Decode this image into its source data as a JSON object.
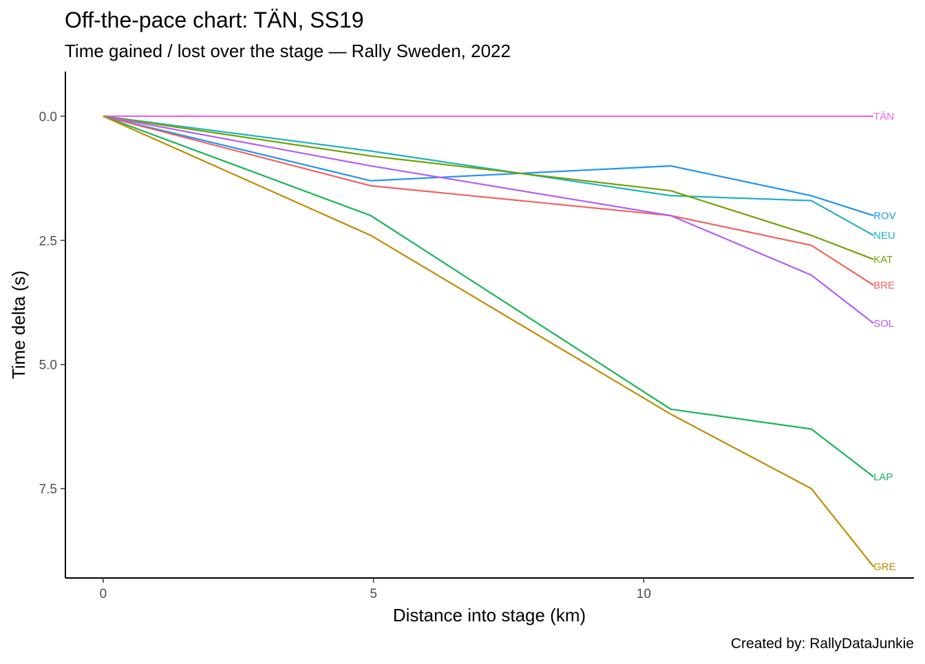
{
  "chart_data": {
    "type": "line",
    "title": "Off-the-pace chart: TÄN, SS19",
    "subtitle": "Time gained / lost over the stage — Rally Sweden, 2022",
    "xlabel": "Distance into stage (km)",
    "ylabel": "Time delta (s)",
    "caption": "Created by: RallyDataJunkie",
    "xlim": [
      -0.7,
      15.0
    ],
    "ylim": [
      9.3,
      -0.9
    ],
    "y_reversed": true,
    "x_ticks": [
      "0",
      "5",
      "10"
    ],
    "x_tick_values": [
      0,
      5,
      10
    ],
    "y_ticks": [
      "0.0",
      "2.5",
      "5.0",
      "7.5"
    ],
    "y_tick_values": [
      0,
      2.5,
      5,
      7.5
    ],
    "grid": false,
    "legend": "direct labels at line ends",
    "x": [
      0,
      4.95,
      10.5,
      13.1,
      14.25
    ],
    "series": [
      {
        "name": "TÄN",
        "color": "#F564E3",
        "values": [
          0,
          0,
          0,
          0,
          0
        ]
      },
      {
        "name": "ROV",
        "color": "#1F94F0",
        "values": [
          0,
          1.3,
          1.0,
          1.6,
          2.0
        ]
      },
      {
        "name": "NEU",
        "color": "#1FB2BF",
        "values": [
          0,
          0.7,
          1.6,
          1.7,
          2.4
        ]
      },
      {
        "name": "KAT",
        "color": "#6EA300",
        "values": [
          0,
          0.8,
          1.5,
          2.4,
          2.88
        ]
      },
      {
        "name": "BRE",
        "color": "#F0625E",
        "values": [
          0,
          1.4,
          2.0,
          2.6,
          3.4
        ]
      },
      {
        "name": "SOL",
        "color": "#B35EF5",
        "values": [
          0,
          1.0,
          2.0,
          3.2,
          4.17
        ]
      },
      {
        "name": "LAP",
        "color": "#16B555",
        "values": [
          0,
          2.0,
          5.9,
          6.3,
          7.26
        ]
      },
      {
        "name": "GRE",
        "color": "#C08A00",
        "values": [
          0,
          2.4,
          6.0,
          7.5,
          9.07
        ]
      }
    ]
  }
}
